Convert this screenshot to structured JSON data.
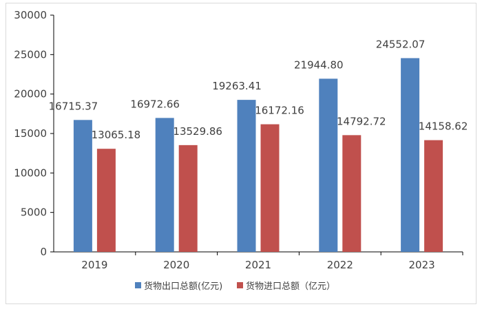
{
  "chart_data": {
    "type": "bar",
    "title": "",
    "xlabel": "",
    "ylabel": "",
    "ylim": [
      0,
      30000
    ],
    "yticks": [
      0,
      5000,
      10000,
      15000,
      20000,
      25000,
      30000
    ],
    "grid": false,
    "legend_position": "bottom",
    "categories": [
      "2019",
      "2020",
      "2021",
      "2022",
      "2023"
    ],
    "series": [
      {
        "name": "货物出口总额(亿元)",
        "color": "#4f81bd",
        "values": [
          16715.37,
          16972.66,
          19263.41,
          21944.8,
          24552.07
        ],
        "labels": [
          "16715.37",
          "16972.66",
          "19263.41",
          "21944.80",
          "24552.07"
        ]
      },
      {
        "name": "货物进口总额（亿元）",
        "color": "#c0504d",
        "values": [
          13065.18,
          13529.86,
          16172.16,
          14792.72,
          14158.62
        ],
        "labels": [
          "13065.18",
          "13529.86",
          "16172.16",
          "14792.72",
          "14158.62"
        ]
      }
    ]
  }
}
